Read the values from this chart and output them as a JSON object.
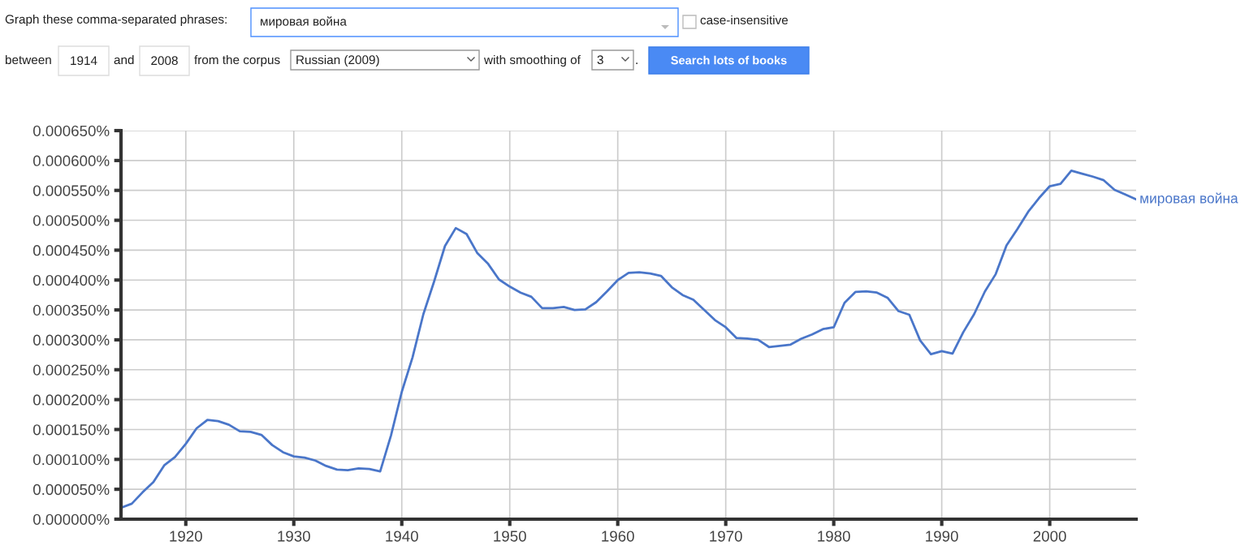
{
  "chart_data": {
    "type": "line",
    "x": [
      1914,
      1915,
      1916,
      1917,
      1918,
      1919,
      1920,
      1921,
      1922,
      1923,
      1924,
      1925,
      1926,
      1927,
      1928,
      1929,
      1930,
      1931,
      1932,
      1933,
      1934,
      1935,
      1936,
      1937,
      1938,
      1939,
      1940,
      1941,
      1942,
      1943,
      1944,
      1945,
      1946,
      1947,
      1948,
      1949,
      1950,
      1951,
      1952,
      1953,
      1954,
      1955,
      1956,
      1957,
      1958,
      1959,
      1960,
      1961,
      1962,
      1963,
      1964,
      1965,
      1966,
      1967,
      1968,
      1969,
      1970,
      1971,
      1972,
      1973,
      1974,
      1975,
      1976,
      1977,
      1978,
      1979,
      1980,
      1981,
      1982,
      1983,
      1984,
      1985,
      1986,
      1987,
      1988,
      1989,
      1990,
      1991,
      1992,
      1993,
      1994,
      1995,
      1996,
      1997,
      1998,
      1999,
      2000,
      2001,
      2002,
      2003,
      2004,
      2005,
      2006,
      2007,
      2008
    ],
    "series": [
      {
        "name": "мировая война",
        "color": "#4a76c9",
        "values": [
          1.9e-05,
          2.6e-05,
          4.5e-05,
          6.2e-05,
          9e-05,
          0.000104,
          0.000126,
          0.000152,
          0.000166,
          0.000164,
          0.000158,
          0.000147,
          0.000146,
          0.000141,
          0.000124,
          0.000112,
          0.000105,
          0.000103,
          9.8e-05,
          8.9e-05,
          8.3e-05,
          8.2e-05,
          8.5e-05,
          8.4e-05,
          8e-05,
          0.00014,
          0.000213,
          0.000271,
          0.000343,
          0.000398,
          0.000457,
          0.000487,
          0.000477,
          0.000445,
          0.000427,
          0.000401,
          0.000389,
          0.000379,
          0.000372,
          0.000353,
          0.000353,
          0.000355,
          0.00035,
          0.000351,
          0.000363,
          0.000381,
          0.0004,
          0.000412,
          0.000413,
          0.000411,
          0.000407,
          0.000388,
          0.000375,
          0.000367,
          0.00035,
          0.000333,
          0.000321,
          0.000303,
          0.000302,
          0.0003,
          0.000288,
          0.00029,
          0.000292,
          0.000302,
          0.000309,
          0.000318,
          0.000321,
          0.000362,
          0.00038,
          0.000381,
          0.000379,
          0.00037,
          0.000348,
          0.000342,
          0.000299,
          0.000276,
          0.000281,
          0.000277,
          0.000313,
          0.000343,
          0.000381,
          0.00041,
          0.000458,
          0.000485,
          0.000514,
          0.000537,
          0.000557,
          0.000561,
          0.000583,
          0.000578,
          0.000573,
          0.000567,
          0.000551,
          0.000543,
          0.000535
        ]
      }
    ],
    "xlim": [
      1914,
      2008
    ],
    "ylim": [
      0,
      0.00065
    ],
    "xticks": [
      1920,
      1930,
      1940,
      1950,
      1960,
      1970,
      1980,
      1990,
      2000
    ],
    "yticks": [
      {
        "value": 0,
        "label": "0.000000%"
      },
      {
        "value": 5e-05,
        "label": "0.000050%"
      },
      {
        "value": 0.0001,
        "label": "0.000100%"
      },
      {
        "value": 0.00015,
        "label": "0.000150%"
      },
      {
        "value": 0.0002,
        "label": "0.000200%"
      },
      {
        "value": 0.00025,
        "label": "0.000250%"
      },
      {
        "value": 0.0003,
        "label": "0.000300%"
      },
      {
        "value": 0.00035,
        "label": "0.000350%"
      },
      {
        "value": 0.0004,
        "label": "0.000400%"
      },
      {
        "value": 0.00045,
        "label": "0.000450%"
      },
      {
        "value": 0.0005,
        "label": "0.000500%"
      },
      {
        "value": 0.00055,
        "label": "0.000550%"
      },
      {
        "value": 0.0006,
        "label": "0.000600%"
      },
      {
        "value": 0.00065,
        "label": "0.000650%"
      }
    ],
    "grid": true,
    "annotations": [
      "Graph these comma-separated phrases:",
      "мировая война",
      "case-insensitive",
      "between",
      "1914",
      "and",
      "2008",
      "from the corpus",
      "Russian (2009)",
      "with smoothing of",
      "3",
      ".",
      "Search lots of books"
    ]
  }
}
